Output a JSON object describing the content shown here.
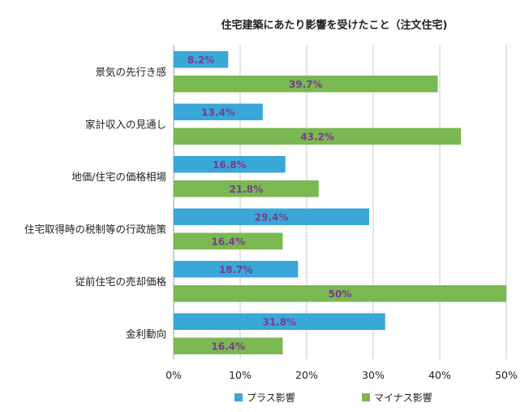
{
  "chart_data": {
    "type": "bar",
    "orientation": "horizontal",
    "title": "住宅建築にあたり影響を受けたこと（注文住宅)",
    "categories": [
      "景気の先行き感",
      "家計収入の見通し",
      "地価/住宅の価格相場",
      "住宅取得時の税制等の行政施策",
      "従前住宅の売却価格",
      "金利動向"
    ],
    "series": [
      {
        "name": "プラス影響",
        "color": "#3aa7d9",
        "values": [
          8.2,
          13.4,
          16.8,
          29.4,
          18.7,
          31.8
        ],
        "labels": [
          "8.2%",
          "13.4%",
          "16.8%",
          "29.4%",
          "18.7%",
          "31.8%"
        ]
      },
      {
        "name": "マイナス影響",
        "color": "#7ab851",
        "values": [
          39.7,
          43.2,
          21.8,
          16.4,
          50,
          16.4
        ],
        "labels": [
          "39.7%",
          "43.2%",
          "21.8%",
          "16.4%",
          "50%",
          "16.4%"
        ]
      }
    ],
    "xlim": [
      0,
      50
    ],
    "xticks": [
      "0%",
      "10%",
      "20%",
      "30%",
      "40%",
      "50%"
    ],
    "xlabel": "",
    "ylabel": "",
    "grid": true,
    "legend_position": "bottom"
  }
}
